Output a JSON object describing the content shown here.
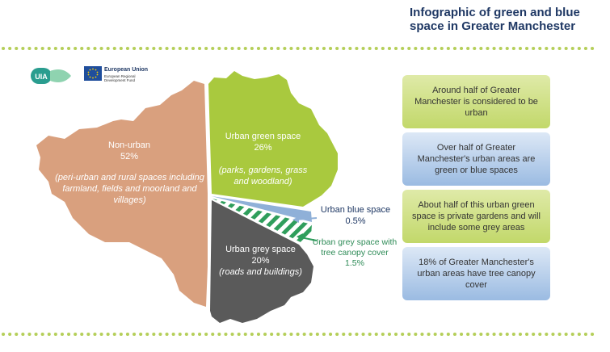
{
  "header": {
    "title": "Infographic of green and blue space in Greater Manchester"
  },
  "logos": {
    "uia_text": "UIA",
    "eu_title": "European Union",
    "eu_fund": "European Regional Development Fund"
  },
  "map": {
    "non_urban": {
      "name": "Non-urban",
      "percent": "52%",
      "detail": "(peri-urban and rural spaces including farmland, fields and moorland and villages)"
    },
    "urban_green": {
      "name": "Urban green space",
      "percent": "26%",
      "detail": "(parks, gardens, grass and woodland)"
    },
    "urban_grey": {
      "name": "Urban grey space",
      "percent": "20%",
      "detail": "(roads and buildings)"
    },
    "urban_blue": {
      "name": "Urban blue space",
      "percent": "0.5%"
    },
    "grey_canopy": {
      "name": "Urban grey space with tree canopy cover",
      "percent": "1.5%"
    },
    "colors": {
      "non_urban": "#d9a07e",
      "urban_green": "#a9c93e",
      "urban_grey": "#5a5a5a",
      "urban_blue": "#8fb0d8",
      "canopy": "#2f9e5c"
    }
  },
  "facts": [
    {
      "text": "Around half of Greater Manchester is considered to be urban",
      "style": "green"
    },
    {
      "text": "Over half of Greater Manchester's urban areas are green or blue spaces",
      "style": "blue"
    },
    {
      "text": "About half of this urban green space is private gardens and will include some grey areas",
      "style": "green"
    },
    {
      "text": "18% of Greater Manchester's urban areas have tree canopy cover",
      "style": "blue"
    }
  ]
}
